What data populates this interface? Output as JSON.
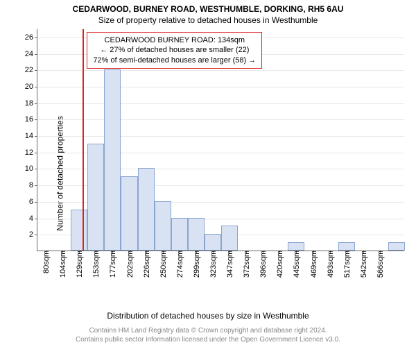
{
  "chart": {
    "type": "histogram",
    "title_main": "CEDARWOOD, BURNEY ROAD, WESTHUMBLE, DORKING, RH5 6AU",
    "title_sub": "Size of property relative to detached houses in Westhumble",
    "xlabel": "Distribution of detached houses by size in Westhumble",
    "ylabel": "Number of detached properties",
    "background_color": "#ffffff",
    "grid_color": "#e8e8e8",
    "axis_color": "#666666",
    "bar_fill": "#d8e2f2",
    "bar_border": "#8aa5d0",
    "marker_color": "#dd2222",
    "annotation_border": "#dd2222",
    "bar_values": [
      0,
      0,
      5,
      13,
      22,
      9,
      10,
      6,
      4,
      4,
      2,
      3,
      0,
      0,
      0,
      1,
      0,
      0,
      1,
      0,
      0,
      1
    ],
    "xtick_labels": [
      "80sqm",
      "104sqm",
      "129sqm",
      "153sqm",
      "177sqm",
      "202sqm",
      "226sqm",
      "250sqm",
      "274sqm",
      "299sqm",
      "323sqm",
      "347sqm",
      "372sqm",
      "396sqm",
      "420sqm",
      "445sqm",
      "469sqm",
      "493sqm",
      "517sqm",
      "542sqm",
      "566sqm"
    ],
    "ytick_labels": [
      "2",
      "4",
      "6",
      "8",
      "10",
      "12",
      "14",
      "16",
      "18",
      "20",
      "22",
      "24",
      "26"
    ],
    "ylim": [
      0,
      27
    ],
    "marker_value_sqm": 134,
    "x_min_sqm": 68,
    "bin_width_sqm": 24.3,
    "annotation": {
      "line1": "CEDARWOOD BURNEY ROAD: 134sqm",
      "line2": "← 27% of detached houses are smaller (22)",
      "line3": "72% of semi-detached houses are larger (58) →"
    },
    "footer_line1": "Contains HM Land Registry data © Crown copyright and database right 2024.",
    "footer_line2": "Contains public sector information licensed under the Open Government Licence v3.0.",
    "title_fontsize": 12,
    "label_fontsize": 12,
    "tick_fontsize": 11,
    "footer_fontsize": 10
  }
}
